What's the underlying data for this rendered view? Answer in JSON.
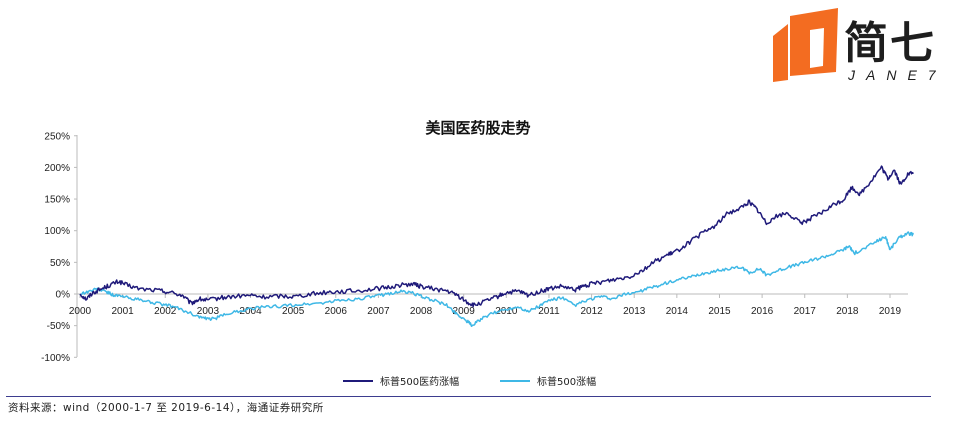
{
  "logo": {
    "cn": "简七",
    "en": "JANE7",
    "color": "#f36c21"
  },
  "source": "资料来源：wind（2000-1-7 至 2019-6-14），海通证券研究所",
  "chart_data": {
    "type": "line",
    "title": "美国医药股走势",
    "xlabel": "",
    "ylabel": "",
    "x_ticks": [
      "2000",
      "2001",
      "2002",
      "2003",
      "2004",
      "2005",
      "2006",
      "2007",
      "2008",
      "2009",
      "2010",
      "2011",
      "2012",
      "2013",
      "2014",
      "2015",
      "2016",
      "2017",
      "2018",
      "2019"
    ],
    "y_ticks": [
      "250%",
      "200%",
      "150%",
      "100%",
      "50%",
      "0%",
      "-50%",
      "-100%"
    ],
    "ylim": [
      -100,
      250
    ],
    "xlim": [
      2000.0,
      2019.6
    ],
    "legend_position": "bottom",
    "grid": false,
    "series": [
      {
        "name": "标普500医药涨幅",
        "color": "#1f1a7a",
        "points": [
          [
            2000.0,
            0
          ],
          [
            2000.15,
            -8
          ],
          [
            2000.3,
            2
          ],
          [
            2000.5,
            8
          ],
          [
            2000.7,
            14
          ],
          [
            2000.9,
            20
          ],
          [
            2001.1,
            14
          ],
          [
            2001.4,
            8
          ],
          [
            2001.8,
            6
          ],
          [
            2002.1,
            3
          ],
          [
            2002.4,
            -2
          ],
          [
            2002.6,
            -15
          ],
          [
            2002.8,
            -8
          ],
          [
            2003.0,
            -10
          ],
          [
            2003.3,
            -6
          ],
          [
            2003.6,
            -4
          ],
          [
            2004.0,
            -2
          ],
          [
            2004.3,
            -5
          ],
          [
            2004.7,
            -3
          ],
          [
            2005.0,
            -4
          ],
          [
            2005.4,
            0
          ],
          [
            2005.8,
            3
          ],
          [
            2006.1,
            4
          ],
          [
            2006.5,
            5
          ],
          [
            2006.9,
            8
          ],
          [
            2007.2,
            10
          ],
          [
            2007.5,
            14
          ],
          [
            2007.8,
            16
          ],
          [
            2008.0,
            12
          ],
          [
            2008.3,
            8
          ],
          [
            2008.6,
            5
          ],
          [
            2008.85,
            -2
          ],
          [
            2009.1,
            -14
          ],
          [
            2009.25,
            -18
          ],
          [
            2009.5,
            -12
          ],
          [
            2009.8,
            -4
          ],
          [
            2010.0,
            2
          ],
          [
            2010.3,
            4
          ],
          [
            2010.5,
            -2
          ],
          [
            2010.8,
            4
          ],
          [
            2011.0,
            8
          ],
          [
            2011.3,
            12
          ],
          [
            2011.6,
            6
          ],
          [
            2011.8,
            12
          ],
          [
            2012.0,
            16
          ],
          [
            2012.3,
            20
          ],
          [
            2012.6,
            24
          ],
          [
            2012.9,
            28
          ],
          [
            2013.2,
            38
          ],
          [
            2013.5,
            52
          ],
          [
            2013.8,
            62
          ],
          [
            2014.0,
            68
          ],
          [
            2014.3,
            82
          ],
          [
            2014.6,
            96
          ],
          [
            2014.9,
            108
          ],
          [
            2015.2,
            128
          ],
          [
            2015.5,
            136
          ],
          [
            2015.7,
            146
          ],
          [
            2015.9,
            132
          ],
          [
            2016.1,
            112
          ],
          [
            2016.3,
            122
          ],
          [
            2016.6,
            128
          ],
          [
            2016.9,
            112
          ],
          [
            2017.1,
            118
          ],
          [
            2017.4,
            128
          ],
          [
            2017.7,
            142
          ],
          [
            2017.9,
            148
          ],
          [
            2018.1,
            168
          ],
          [
            2018.3,
            158
          ],
          [
            2018.55,
            178
          ],
          [
            2018.8,
            200
          ],
          [
            2018.95,
            182
          ],
          [
            2019.1,
            196
          ],
          [
            2019.25,
            172
          ],
          [
            2019.4,
            188
          ],
          [
            2019.55,
            192
          ]
        ]
      },
      {
        "name": "标普500涨幅",
        "color": "#3fb8e6",
        "points": [
          [
            2000.0,
            0
          ],
          [
            2000.2,
            4
          ],
          [
            2000.4,
            8
          ],
          [
            2000.6,
            4
          ],
          [
            2000.8,
            -2
          ],
          [
            2001.0,
            -4
          ],
          [
            2001.3,
            -8
          ],
          [
            2001.6,
            -12
          ],
          [
            2001.9,
            -16
          ],
          [
            2002.2,
            -20
          ],
          [
            2002.5,
            -28
          ],
          [
            2002.8,
            -36
          ],
          [
            2003.0,
            -40
          ],
          [
            2003.2,
            -38
          ],
          [
            2003.5,
            -30
          ],
          [
            2003.8,
            -26
          ],
          [
            2004.1,
            -22
          ],
          [
            2004.5,
            -20
          ],
          [
            2004.9,
            -18
          ],
          [
            2005.3,
            -16
          ],
          [
            2005.7,
            -14
          ],
          [
            2006.1,
            -10
          ],
          [
            2006.5,
            -8
          ],
          [
            2006.9,
            -4
          ],
          [
            2007.2,
            0
          ],
          [
            2007.5,
            4
          ],
          [
            2007.8,
            2
          ],
          [
            2008.0,
            -4
          ],
          [
            2008.3,
            -10
          ],
          [
            2008.6,
            -18
          ],
          [
            2008.85,
            -32
          ],
          [
            2009.1,
            -44
          ],
          [
            2009.2,
            -50
          ],
          [
            2009.4,
            -40
          ],
          [
            2009.7,
            -30
          ],
          [
            2010.0,
            -24
          ],
          [
            2010.3,
            -20
          ],
          [
            2010.5,
            -28
          ],
          [
            2010.8,
            -18
          ],
          [
            2011.0,
            -10
          ],
          [
            2011.3,
            -6
          ],
          [
            2011.6,
            -18
          ],
          [
            2011.9,
            -10
          ],
          [
            2012.2,
            -4
          ],
          [
            2012.5,
            -8
          ],
          [
            2012.8,
            0
          ],
          [
            2013.1,
            4
          ],
          [
            2013.4,
            10
          ],
          [
            2013.7,
            16
          ],
          [
            2014.0,
            22
          ],
          [
            2014.3,
            26
          ],
          [
            2014.6,
            32
          ],
          [
            2014.9,
            36
          ],
          [
            2015.2,
            40
          ],
          [
            2015.5,
            42
          ],
          [
            2015.7,
            34
          ],
          [
            2015.95,
            40
          ],
          [
            2016.1,
            30
          ],
          [
            2016.4,
            38
          ],
          [
            2016.7,
            44
          ],
          [
            2017.0,
            50
          ],
          [
            2017.3,
            56
          ],
          [
            2017.6,
            62
          ],
          [
            2017.9,
            70
          ],
          [
            2018.05,
            76
          ],
          [
            2018.15,
            64
          ],
          [
            2018.4,
            72
          ],
          [
            2018.7,
            84
          ],
          [
            2018.9,
            90
          ],
          [
            2019.0,
            70
          ],
          [
            2019.2,
            88
          ],
          [
            2019.4,
            96
          ],
          [
            2019.55,
            94
          ]
        ]
      }
    ]
  }
}
